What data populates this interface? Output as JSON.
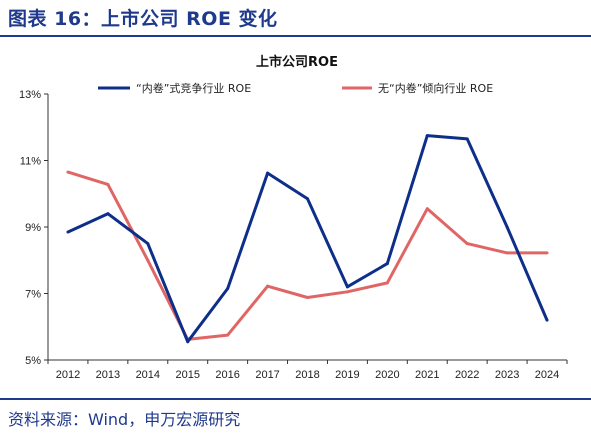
{
  "figure": {
    "title": "图表 16：上市公司 ROE 变化",
    "source": "资料来源：Wind，申万宏源研究",
    "accent_color": "#1f3a8c"
  },
  "chart_data": {
    "type": "line",
    "title": "上市公司ROE",
    "xlabel": "",
    "ylabel": "",
    "x": [
      "2012",
      "2013",
      "2014",
      "2015",
      "2016",
      "2017",
      "2018",
      "2019",
      "2020",
      "2021",
      "2022",
      "2023",
      "2024"
    ],
    "ylim": [
      5,
      13
    ],
    "yticks": [
      5,
      7,
      9,
      11,
      13
    ],
    "ytick_labels": [
      "5%",
      "7%",
      "9%",
      "11%",
      "13%"
    ],
    "grid": false,
    "legend_position": "top",
    "series": [
      {
        "name": "“内卷”式竞争行业 ROE",
        "color": "#0d2f8a",
        "values": [
          8.85,
          9.4,
          8.5,
          5.55,
          7.15,
          10.62,
          9.85,
          7.2,
          7.9,
          11.75,
          11.65,
          9.0,
          6.2
        ]
      },
      {
        "name": "无“内卷”倾向行业 ROE",
        "color": "#e06666",
        "values": [
          10.65,
          10.28,
          8.0,
          5.62,
          5.75,
          7.22,
          6.88,
          7.05,
          7.32,
          9.55,
          8.5,
          8.22,
          8.22
        ]
      }
    ]
  }
}
